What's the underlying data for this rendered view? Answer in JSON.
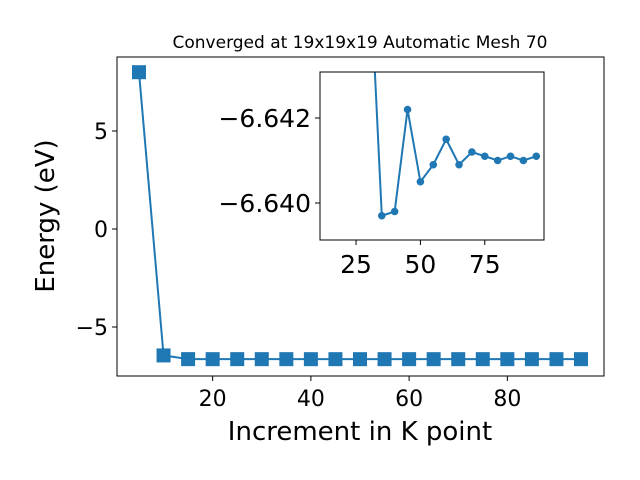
{
  "chart_data": [
    {
      "type": "line",
      "role": "main",
      "title": "Converged at 19x19x19 Automatic Mesh 70",
      "xlabel": "Increment in K point",
      "ylabel": "Energy (eV)",
      "xlim": [
        5,
        95
      ],
      "ylim": [
        -7.5,
        8.5
      ],
      "xticks": [
        20,
        40,
        60,
        80
      ],
      "xtick_labels": [
        "20",
        "40",
        "60",
        "80"
      ],
      "yticks": [
        -5,
        0,
        5
      ],
      "ytick_labels": [
        "−5",
        "0",
        "5"
      ],
      "marker": "square",
      "color": "#1f77b4",
      "x": [
        5,
        10,
        15,
        20,
        25,
        30,
        35,
        40,
        45,
        50,
        55,
        60,
        65,
        70,
        75,
        80,
        85,
        90,
        95
      ],
      "y": [
        8.0,
        -6.45,
        -6.6393,
        -6.6415,
        -6.6397,
        -6.6403,
        -6.6406,
        -6.6413,
        -6.6405,
        -6.6411,
        -6.6409,
        -6.6408,
        -6.641,
        -6.6408,
        -6.6408,
        -6.6408,
        -6.6408,
        -6.6408,
        -6.6408
      ]
    },
    {
      "type": "line",
      "role": "inset",
      "xlim": [
        11,
        98
      ],
      "ylim": [
        -6.6392,
        -6.64315
      ],
      "xticks": [
        25,
        50,
        75
      ],
      "xtick_labels": [
        "25",
        "50",
        "75"
      ],
      "yticks": [
        -6.642,
        -6.64
      ],
      "ytick_labels": [
        "−6.642",
        "−6.640"
      ],
      "marker": "circle",
      "color": "#1f77b4",
      "x": [
        30,
        35,
        40,
        45,
        50,
        55,
        60,
        65,
        70,
        75,
        80,
        85,
        90,
        95
      ],
      "y": [
        -6.646,
        -6.6397,
        -6.6398,
        -6.6422,
        -6.6405,
        -6.6409,
        -6.6415,
        -6.6409,
        -6.6412,
        -6.6411,
        -6.641,
        -6.6411,
        -6.641,
        -6.6411
      ]
    }
  ]
}
